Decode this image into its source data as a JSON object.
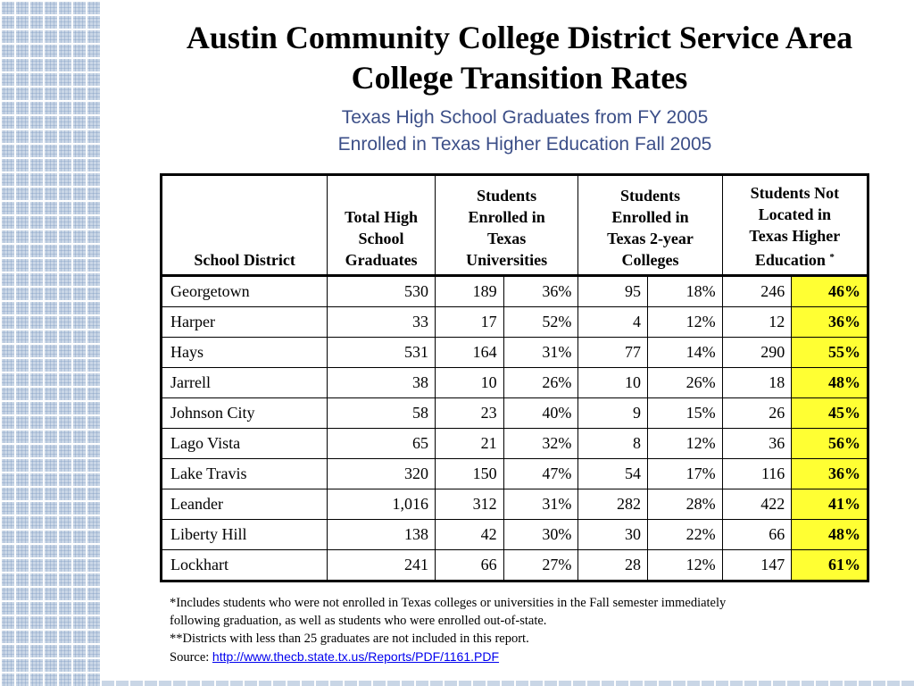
{
  "title_line1": "Austin Community College District Service Area",
  "title_line2": "College Transition Rates",
  "subtitle_line1": "Texas High School Graduates from FY 2005",
  "subtitle_line2": "Enrolled in Texas Higher Education Fall 2005",
  "table": {
    "headers": {
      "district": "School District",
      "total": [
        "Total High",
        "School",
        "Graduates"
      ],
      "universities": [
        "Students",
        "Enrolled in",
        "Texas",
        "Universities"
      ],
      "colleges": [
        "Students",
        "Enrolled in",
        "Texas 2-year",
        "Colleges"
      ],
      "not_located": [
        "Students Not",
        "Located in",
        "Texas Higher",
        "Education"
      ],
      "not_located_mark": "*"
    },
    "rows": [
      {
        "district": "Georgetown",
        "total": "530",
        "univ_n": "189",
        "univ_pct": "36%",
        "coll_n": "95",
        "coll_pct": "18%",
        "nl_n": "246",
        "nl_pct": "46%"
      },
      {
        "district": "Harper",
        "total": "33",
        "univ_n": "17",
        "univ_pct": "52%",
        "coll_n": "4",
        "coll_pct": "12%",
        "nl_n": "12",
        "nl_pct": "36%"
      },
      {
        "district": "Hays",
        "total": "531",
        "univ_n": "164",
        "univ_pct": "31%",
        "coll_n": "77",
        "coll_pct": "14%",
        "nl_n": "290",
        "nl_pct": "55%"
      },
      {
        "district": "Jarrell",
        "total": "38",
        "univ_n": "10",
        "univ_pct": "26%",
        "coll_n": "10",
        "coll_pct": "26%",
        "nl_n": "18",
        "nl_pct": "48%"
      },
      {
        "district": "Johnson City",
        "total": "58",
        "univ_n": "23",
        "univ_pct": "40%",
        "coll_n": "9",
        "coll_pct": "15%",
        "nl_n": "26",
        "nl_pct": "45%"
      },
      {
        "district": "Lago Vista",
        "total": "65",
        "univ_n": "21",
        "univ_pct": "32%",
        "coll_n": "8",
        "coll_pct": "12%",
        "nl_n": "36",
        "nl_pct": "56%"
      },
      {
        "district": "Lake Travis",
        "total": "320",
        "univ_n": "150",
        "univ_pct": "47%",
        "coll_n": "54",
        "coll_pct": "17%",
        "nl_n": "116",
        "nl_pct": "36%"
      },
      {
        "district": "Leander",
        "total": "1,016",
        "univ_n": "312",
        "univ_pct": "31%",
        "coll_n": "282",
        "coll_pct": "28%",
        "nl_n": "422",
        "nl_pct": "41%"
      },
      {
        "district": "Liberty Hill",
        "total": "138",
        "univ_n": "42",
        "univ_pct": "30%",
        "coll_n": "30",
        "coll_pct": "22%",
        "nl_n": "66",
        "nl_pct": "48%"
      },
      {
        "district": "Lockhart",
        "total": "241",
        "univ_n": "66",
        "univ_pct": "27%",
        "coll_n": "28",
        "coll_pct": "12%",
        "nl_n": "147",
        "nl_pct": "61%"
      }
    ],
    "highlight_color": "#ffff33"
  },
  "footnotes": {
    "line1": "*Includes students who were not enrolled in Texas colleges or universities in the Fall semester immediately",
    "line2": "following graduation, as well as students who were enrolled out-of-state.",
    "line3": "**Districts with less than 25 graduates are not included in this report.",
    "source_label": "Source: ",
    "source_link": "http://www.thecb.state.tx.us/Reports/PDF/1161.PDF"
  },
  "colors": {
    "subtitle": "#3c4f88",
    "strip": "#c9d6e6",
    "link": "#0000ee"
  }
}
